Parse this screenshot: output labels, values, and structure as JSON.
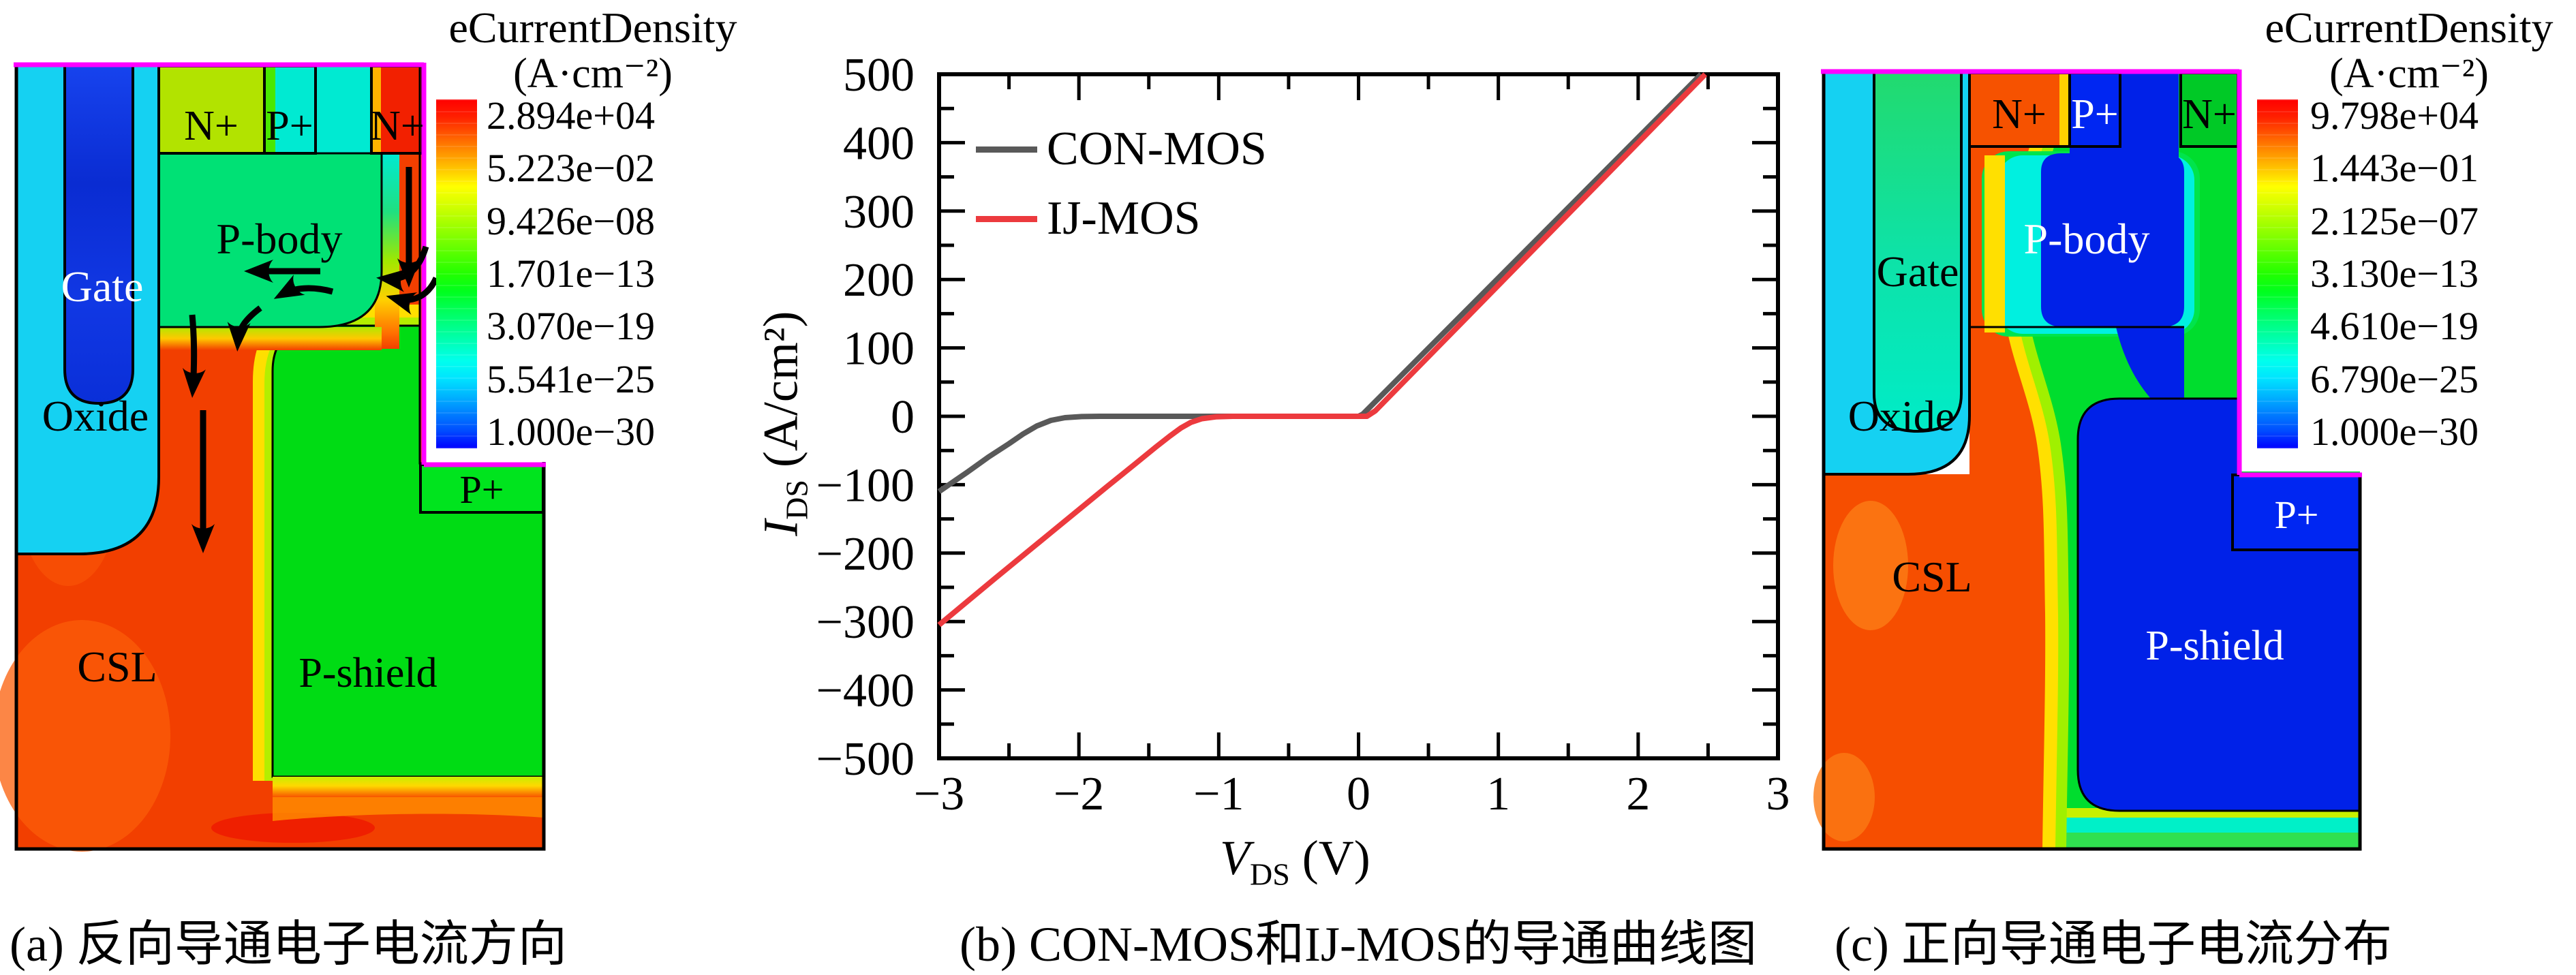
{
  "captions": {
    "a": "(a) 反向导通电子电流方向",
    "b": "(b) CON-MOS和IJ-MOS的导通曲线图",
    "c": "(c) 正向导通电子电流分布"
  },
  "panel_a": {
    "legend_title": "eCurrentDensity",
    "legend_units": "(A·cm⁻²)",
    "legend_values": [
      "2.894e+04",
      "5.223e−02",
      "9.426e−08",
      "1.701e−13",
      "3.070e−19",
      "5.541e−25",
      "1.000e−30"
    ],
    "labels": {
      "n_left": "N+",
      "p_top": "P+",
      "n_right": "N+",
      "p_body": "P-body",
      "gate": "Gate",
      "oxide": "Oxide",
      "csl": "CSL",
      "p_shield": "P-shield",
      "p_right": "P+"
    }
  },
  "panel_c": {
    "legend_title": "eCurrentDensity",
    "legend_units": "(A·cm⁻²)",
    "legend_values": [
      "9.798e+04",
      "1.443e−01",
      "2.125e−07",
      "3.130e−13",
      "4.610e−19",
      "6.790e−25",
      "1.000e−30"
    ],
    "labels": {
      "n_left": "N+",
      "p_top": "P+",
      "n_right": "N+",
      "p_body": "P-body",
      "gate": "Gate",
      "oxide": "Oxide",
      "csl": "CSL",
      "p_shield": "P-shield",
      "p_right": "P+"
    }
  },
  "chart_data": {
    "type": "line",
    "title": "",
    "xlabel_var": "V",
    "xlabel_sub": "DS",
    "xlabel_units": "(V)",
    "ylabel_var": "I",
    "ylabel_sub": "DS",
    "ylabel_units": "(A/cm²)",
    "xlim": [
      -3,
      3
    ],
    "ylim": [
      -500,
      500
    ],
    "x_major_ticks": [
      -3,
      -2,
      -1,
      0,
      1,
      2,
      3
    ],
    "x_minor_step": 0.5,
    "y_major_ticks": [
      -500,
      -400,
      -300,
      -200,
      -100,
      0,
      100,
      200,
      300,
      400,
      500
    ],
    "y_minor_step": 50,
    "grid": false,
    "legend_position": "top-left",
    "series": [
      {
        "name": "CON-MOS",
        "color": "#595959",
        "points": [
          [
            -3,
            -110
          ],
          [
            -2.8,
            -82
          ],
          [
            -2.65,
            -60
          ],
          [
            -2.5,
            -40
          ],
          [
            -2.4,
            -26
          ],
          [
            -2.3,
            -14
          ],
          [
            -2.2,
            -6
          ],
          [
            -2.1,
            -2
          ],
          [
            -1.98,
            -0.4
          ],
          [
            -1.85,
            0
          ],
          [
            0,
            0
          ],
          [
            0.03,
            3
          ],
          [
            2.45,
            500
          ]
        ]
      },
      {
        "name": "IJ-MOS",
        "color": "#ec3a3e",
        "points": [
          [
            -3,
            -305
          ],
          [
            -2.6,
            -237
          ],
          [
            -2.2,
            -170
          ],
          [
            -1.8,
            -103
          ],
          [
            -1.6,
            -70
          ],
          [
            -1.45,
            -45
          ],
          [
            -1.35,
            -29
          ],
          [
            -1.27,
            -17
          ],
          [
            -1.2,
            -9
          ],
          [
            -1.12,
            -3.5
          ],
          [
            -1.02,
            -0.8
          ],
          [
            -0.9,
            0
          ],
          [
            0,
            0
          ],
          [
            0.06,
            0
          ],
          [
            0.12,
            8
          ],
          [
            2.48,
            500
          ]
        ]
      }
    ]
  },
  "colors": {
    "magenta_border": "#ff00ff",
    "oxide_cyan": "#15d1f2",
    "gate_blue": "#0d35e0",
    "gate_teal": "#0ee2a6",
    "csl_red": "#f23f00",
    "pshield_green": "#00dc14",
    "pbody_blue": "#0021e8"
  }
}
